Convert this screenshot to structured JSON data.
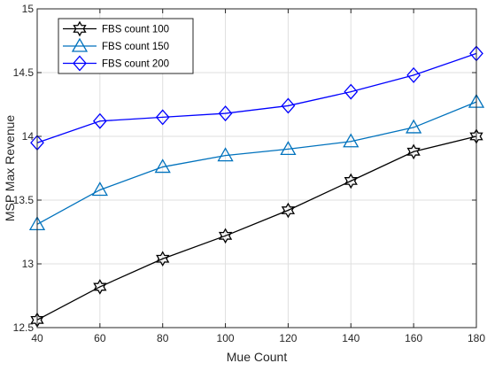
{
  "chart_data": {
    "type": "line",
    "title": "",
    "xlabel": "Mue Count",
    "ylabel": "MSP Max Revenue",
    "xlim": [
      40,
      180
    ],
    "ylim": [
      12.5,
      15
    ],
    "x_ticks": [
      "40",
      "60",
      "80",
      "100",
      "120",
      "140",
      "160",
      "180"
    ],
    "y_ticks": [
      "12.5",
      "13",
      "13.5",
      "14",
      "14.5",
      "15"
    ],
    "x": [
      40,
      60,
      80,
      100,
      120,
      140,
      160,
      180
    ],
    "grid": true,
    "legend_position": "top-left",
    "series": [
      {
        "name": "FBS count 100",
        "color": "#000000",
        "marker": "hexagram-star",
        "values": [
          12.56,
          12.82,
          13.04,
          13.22,
          13.42,
          13.65,
          13.88,
          14.0
        ]
      },
      {
        "name": "FBS count 150",
        "color": "#0072BD",
        "marker": "triangle",
        "values": [
          13.31,
          13.58,
          13.76,
          13.85,
          13.9,
          13.96,
          14.07,
          14.27
        ]
      },
      {
        "name": "FBS count 200",
        "color": "#0000FF",
        "marker": "diamond",
        "values": [
          13.95,
          14.12,
          14.15,
          14.18,
          14.24,
          14.35,
          14.48,
          14.65
        ]
      }
    ]
  }
}
